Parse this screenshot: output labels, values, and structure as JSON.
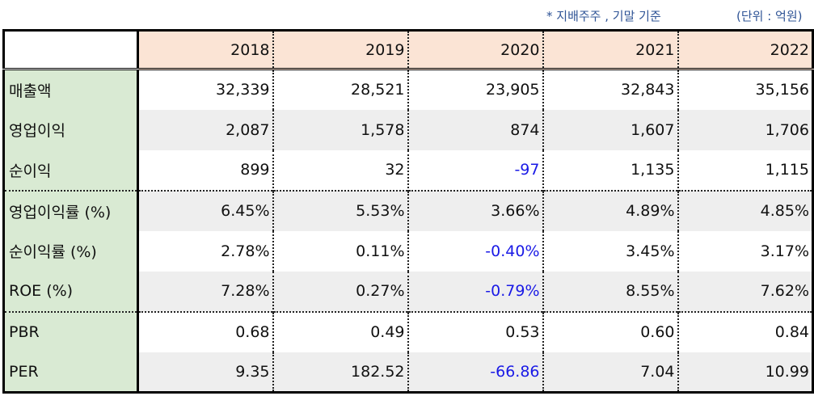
{
  "notes": {
    "basis": "* 지배주주 , 기말 기준",
    "unit": "(단위 : 억원)"
  },
  "table": {
    "years": [
      "2018",
      "2019",
      "2020",
      "2021",
      "2022"
    ],
    "rows": [
      {
        "label": "매출액",
        "values": [
          "32,339",
          "28,521",
          "23,905",
          "32,843",
          "35,156"
        ]
      },
      {
        "label": "영업이익",
        "values": [
          "2,087",
          "1,578",
          "874",
          "1,607",
          "1,706"
        ]
      },
      {
        "label": "순이익",
        "values": [
          "899",
          "32",
          "-97",
          "1,135",
          "1,115"
        ]
      },
      {
        "label": "영업이익률 (%)",
        "values": [
          "6.45%",
          "5.53%",
          "3.66%",
          "4.89%",
          "4.85%"
        ]
      },
      {
        "label": "순이익률 (%)",
        "values": [
          "2.78%",
          "0.11%",
          "-0.40%",
          "3.45%",
          "3.17%"
        ]
      },
      {
        "label": "ROE (%)",
        "values": [
          "7.28%",
          "0.27%",
          "-0.79%",
          "8.55%",
          "7.62%"
        ]
      },
      {
        "label": "PBR",
        "values": [
          "0.68",
          "0.49",
          "0.53",
          "0.60",
          "0.84"
        ]
      },
      {
        "label": "PER",
        "values": [
          "9.35",
          "182.52",
          "-66.86",
          "7.04",
          "10.99"
        ]
      }
    ]
  },
  "colors": {
    "header_bg": "#fbe4d5",
    "label_bg": "#d9ead3",
    "shade_bg": "#eeeeee",
    "negative": "#1a1ae6",
    "note": "#2f5496"
  }
}
